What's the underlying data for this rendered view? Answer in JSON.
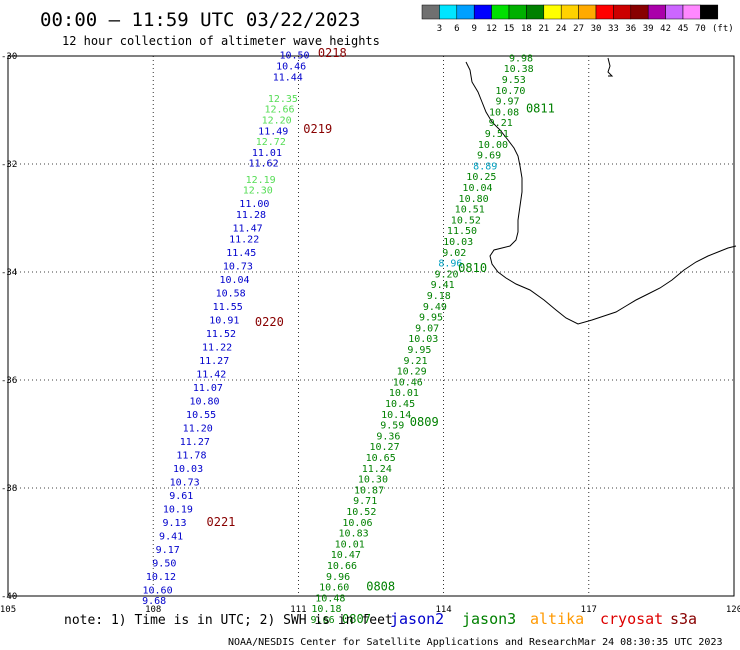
{
  "header": {
    "title": "00:00 – 11:59 UTC 03/22/2023",
    "subtitle": "12 hour collection of altimeter wave heights"
  },
  "scale": {
    "unit": "(ft)",
    "ticks": [
      "3",
      "6",
      "9",
      "12",
      "15",
      "18",
      "21",
      "24",
      "27",
      "30",
      "33",
      "36",
      "39",
      "42",
      "45",
      "70"
    ],
    "colors": [
      "#707070",
      "#00e5ff",
      "#00a0ff",
      "#0000ff",
      "#00e000",
      "#00b000",
      "#008000",
      "#ffff00",
      "#ffd200",
      "#ffaa00",
      "#ff0000",
      "#cc0000",
      "#880000",
      "#aa00aa",
      "#cc66ff",
      "#ff88ff",
      "#000000"
    ]
  },
  "chart_data": {
    "type": "scatter",
    "xlim": [
      105,
      120
    ],
    "ylim": [
      -40,
      -30
    ],
    "xticks": [
      "105",
      "108",
      "111",
      "114",
      "117",
      "120"
    ],
    "yticks": [
      "-30",
      "-32",
      "-34",
      "-36",
      "-38",
      "-40"
    ],
    "grid": true,
    "series": [
      {
        "name": "jason2",
        "color": "#0000cc",
        "points": [
          {
            "lon": 110.92,
            "lat": -30.05,
            "v": "10.50"
          },
          {
            "lon": 110.85,
            "lat": -30.25,
            "v": "10.46"
          },
          {
            "lon": 110.78,
            "lat": -30.45,
            "v": "11.44"
          },
          {
            "lon": 110.68,
            "lat": -30.85,
            "v": "12.35"
          },
          {
            "lon": 110.61,
            "lat": -31.05,
            "v": "12.66"
          },
          {
            "lon": 110.55,
            "lat": -31.25,
            "v": "12.20"
          },
          {
            "lon": 110.48,
            "lat": -31.45,
            "v": "11.49"
          },
          {
            "lon": 110.43,
            "lat": -31.65,
            "v": "12.72"
          },
          {
            "lon": 110.35,
            "lat": -31.85,
            "v": "11.01"
          },
          {
            "lon": 110.28,
            "lat": -32.05,
            "v": "11.62"
          },
          {
            "lon": 110.22,
            "lat": -32.35,
            "v": "12.19"
          },
          {
            "lon": 110.16,
            "lat": -32.55,
            "v": "12.30"
          },
          {
            "lon": 110.09,
            "lat": -32.8,
            "v": "11.00"
          },
          {
            "lon": 110.02,
            "lat": -33.0,
            "v": "11.28"
          },
          {
            "lon": 109.95,
            "lat": -33.25,
            "v": "11.47"
          },
          {
            "lon": 109.88,
            "lat": -33.45,
            "v": "11.22"
          },
          {
            "lon": 109.82,
            "lat": -33.7,
            "v": "11.45"
          },
          {
            "lon": 109.75,
            "lat": -33.95,
            "v": "10.73"
          },
          {
            "lon": 109.68,
            "lat": -34.2,
            "v": "10.04"
          },
          {
            "lon": 109.6,
            "lat": -34.45,
            "v": "10.58"
          },
          {
            "lon": 109.54,
            "lat": -34.7,
            "v": "11.55"
          },
          {
            "lon": 109.47,
            "lat": -34.95,
            "v": "10.91"
          },
          {
            "lon": 109.4,
            "lat": -35.2,
            "v": "11.52"
          },
          {
            "lon": 109.32,
            "lat": -35.45,
            "v": "11.22"
          },
          {
            "lon": 109.26,
            "lat": -35.7,
            "v": "11.27"
          },
          {
            "lon": 109.2,
            "lat": -35.95,
            "v": "11.42"
          },
          {
            "lon": 109.13,
            "lat": -36.2,
            "v": "11.07"
          },
          {
            "lon": 109.06,
            "lat": -36.45,
            "v": "10.80"
          },
          {
            "lon": 108.99,
            "lat": -36.7,
            "v": "10.55"
          },
          {
            "lon": 108.92,
            "lat": -36.95,
            "v": "11.20"
          },
          {
            "lon": 108.86,
            "lat": -37.2,
            "v": "11.27"
          },
          {
            "lon": 108.79,
            "lat": -37.45,
            "v": "11.78"
          },
          {
            "lon": 108.72,
            "lat": -37.7,
            "v": "10.03"
          },
          {
            "lon": 108.65,
            "lat": -37.95,
            "v": "10.73"
          },
          {
            "lon": 108.58,
            "lat": -38.2,
            "v": "9.61"
          },
          {
            "lon": 108.51,
            "lat": -38.45,
            "v": "10.19"
          },
          {
            "lon": 108.44,
            "lat": -38.7,
            "v": "9.13"
          },
          {
            "lon": 108.37,
            "lat": -38.95,
            "v": "9.41"
          },
          {
            "lon": 108.3,
            "lat": -39.2,
            "v": "9.17"
          },
          {
            "lon": 108.23,
            "lat": -39.45,
            "v": "9.50"
          },
          {
            "lon": 108.16,
            "lat": -39.7,
            "v": "10.12"
          },
          {
            "lon": 108.09,
            "lat": -39.95,
            "v": "10.60"
          },
          {
            "lon": 108.02,
            "lat": -40.15,
            "v": "9.68"
          }
        ]
      },
      {
        "name": "jason3",
        "color": "#008000",
        "points": [
          {
            "lon": 115.6,
            "lat": -30.1,
            "v": "9.98"
          },
          {
            "lon": 115.55,
            "lat": -30.3,
            "v": "10.38"
          },
          {
            "lon": 115.45,
            "lat": -30.5,
            "v": "9.53"
          },
          {
            "lon": 115.38,
            "lat": -30.7,
            "v": "10.70"
          },
          {
            "lon": 115.32,
            "lat": -30.9,
            "v": "9.97"
          },
          {
            "lon": 115.25,
            "lat": -31.1,
            "v": "10.08"
          },
          {
            "lon": 115.18,
            "lat": -31.3,
            "v": "9.21"
          },
          {
            "lon": 115.1,
            "lat": -31.5,
            "v": "9.51"
          },
          {
            "lon": 115.02,
            "lat": -31.7,
            "v": "10.00"
          },
          {
            "lon": 114.94,
            "lat": -31.9,
            "v": "9.69"
          },
          {
            "lon": 114.86,
            "lat": -32.1,
            "v": "8.89"
          },
          {
            "lon": 114.78,
            "lat": -32.3,
            "v": "10.25"
          },
          {
            "lon": 114.7,
            "lat": -32.5,
            "v": "10.04"
          },
          {
            "lon": 114.62,
            "lat": -32.7,
            "v": "10.80"
          },
          {
            "lon": 114.54,
            "lat": -32.9,
            "v": "10.51"
          },
          {
            "lon": 114.46,
            "lat": -33.1,
            "v": "10.52"
          },
          {
            "lon": 114.38,
            "lat": -33.3,
            "v": "11.50"
          },
          {
            "lon": 114.3,
            "lat": -33.5,
            "v": "10.03"
          },
          {
            "lon": 114.22,
            "lat": -33.7,
            "v": "9.02"
          },
          {
            "lon": 114.14,
            "lat": -33.9,
            "v": "8.96"
          },
          {
            "lon": 114.06,
            "lat": -34.1,
            "v": "9.20"
          },
          {
            "lon": 113.98,
            "lat": -34.3,
            "v": "9.41"
          },
          {
            "lon": 113.9,
            "lat": -34.5,
            "v": "9.18"
          },
          {
            "lon": 113.82,
            "lat": -34.7,
            "v": "9.49"
          },
          {
            "lon": 113.74,
            "lat": -34.9,
            "v": "9.95"
          },
          {
            "lon": 113.66,
            "lat": -35.1,
            "v": "9.07"
          },
          {
            "lon": 113.58,
            "lat": -35.3,
            "v": "10.03"
          },
          {
            "lon": 113.5,
            "lat": -35.5,
            "v": "9.95"
          },
          {
            "lon": 113.42,
            "lat": -35.7,
            "v": "9.21"
          },
          {
            "lon": 113.34,
            "lat": -35.9,
            "v": "10.29"
          },
          {
            "lon": 113.26,
            "lat": -36.1,
            "v": "10.46"
          },
          {
            "lon": 113.18,
            "lat": -36.3,
            "v": "10.01"
          },
          {
            "lon": 113.1,
            "lat": -36.5,
            "v": "10.45"
          },
          {
            "lon": 113.02,
            "lat": -36.7,
            "v": "10.14"
          },
          {
            "lon": 112.94,
            "lat": -36.9,
            "v": "9.59"
          },
          {
            "lon": 112.86,
            "lat": -37.1,
            "v": "9.36"
          },
          {
            "lon": 112.78,
            "lat": -37.3,
            "v": "10.27"
          },
          {
            "lon": 112.7,
            "lat": -37.5,
            "v": "10.65"
          },
          {
            "lon": 112.62,
            "lat": -37.7,
            "v": "11.24"
          },
          {
            "lon": 112.54,
            "lat": -37.9,
            "v": "10.30"
          },
          {
            "lon": 112.46,
            "lat": -38.1,
            "v": "10.87"
          },
          {
            "lon": 112.38,
            "lat": -38.3,
            "v": "9.71"
          },
          {
            "lon": 112.3,
            "lat": -38.5,
            "v": "10.52"
          },
          {
            "lon": 112.22,
            "lat": -38.7,
            "v": "10.06"
          },
          {
            "lon": 112.14,
            "lat": -38.9,
            "v": "10.83"
          },
          {
            "lon": 112.06,
            "lat": -39.1,
            "v": "10.01"
          },
          {
            "lon": 111.98,
            "lat": -39.3,
            "v": "10.47"
          },
          {
            "lon": 111.9,
            "lat": -39.5,
            "v": "10.66"
          },
          {
            "lon": 111.82,
            "lat": -39.7,
            "v": "9.96"
          },
          {
            "lon": 111.74,
            "lat": -39.9,
            "v": "10.60"
          },
          {
            "lon": 111.66,
            "lat": -40.1,
            "v": "10.48"
          },
          {
            "lon": 111.58,
            "lat": -40.3,
            "v": "10.18"
          },
          {
            "lon": 111.5,
            "lat": -40.5,
            "v": "9.66"
          }
        ]
      }
    ],
    "time_markers": [
      {
        "lon": 111.7,
        "lat": -30.02,
        "label": "0218",
        "sat": "jason2"
      },
      {
        "lon": 111.4,
        "lat": -31.43,
        "label": "0219",
        "sat": "jason2"
      },
      {
        "lon": 110.4,
        "lat": -35.0,
        "label": "0220",
        "sat": "jason2"
      },
      {
        "lon": 109.4,
        "lat": -38.7,
        "label": "0221",
        "sat": "jason2"
      },
      {
        "lon": 116.0,
        "lat": -31.05,
        "label": "0811",
        "sat": "jason3"
      },
      {
        "lon": 114.6,
        "lat": -34.0,
        "label": "0810",
        "sat": "jason3"
      },
      {
        "lon": 113.6,
        "lat": -36.85,
        "label": "0809",
        "sat": "jason3"
      },
      {
        "lon": 112.7,
        "lat": -39.9,
        "label": "0808",
        "sat": "jason3"
      },
      {
        "lon": 112.2,
        "lat": -40.5,
        "label": "0807",
        "sat": "jason3"
      }
    ]
  },
  "footer": {
    "note": "note: 1) Time is in UTC; 2) SWH is in feet",
    "credit": "NOAA/NESDIS Center for Satellite Applications and Research",
    "timestamp": "Mar 24 08:30:35 UTC 2023"
  },
  "legend": [
    {
      "label": "jason2",
      "color": "#0000cc"
    },
    {
      "label": "jason3",
      "color": "#008000"
    },
    {
      "label": "altika",
      "color": "#ff9900"
    },
    {
      "label": "cryosat",
      "color": "#dd0000"
    },
    {
      "label": "s3a",
      "color": "#880000"
    }
  ]
}
